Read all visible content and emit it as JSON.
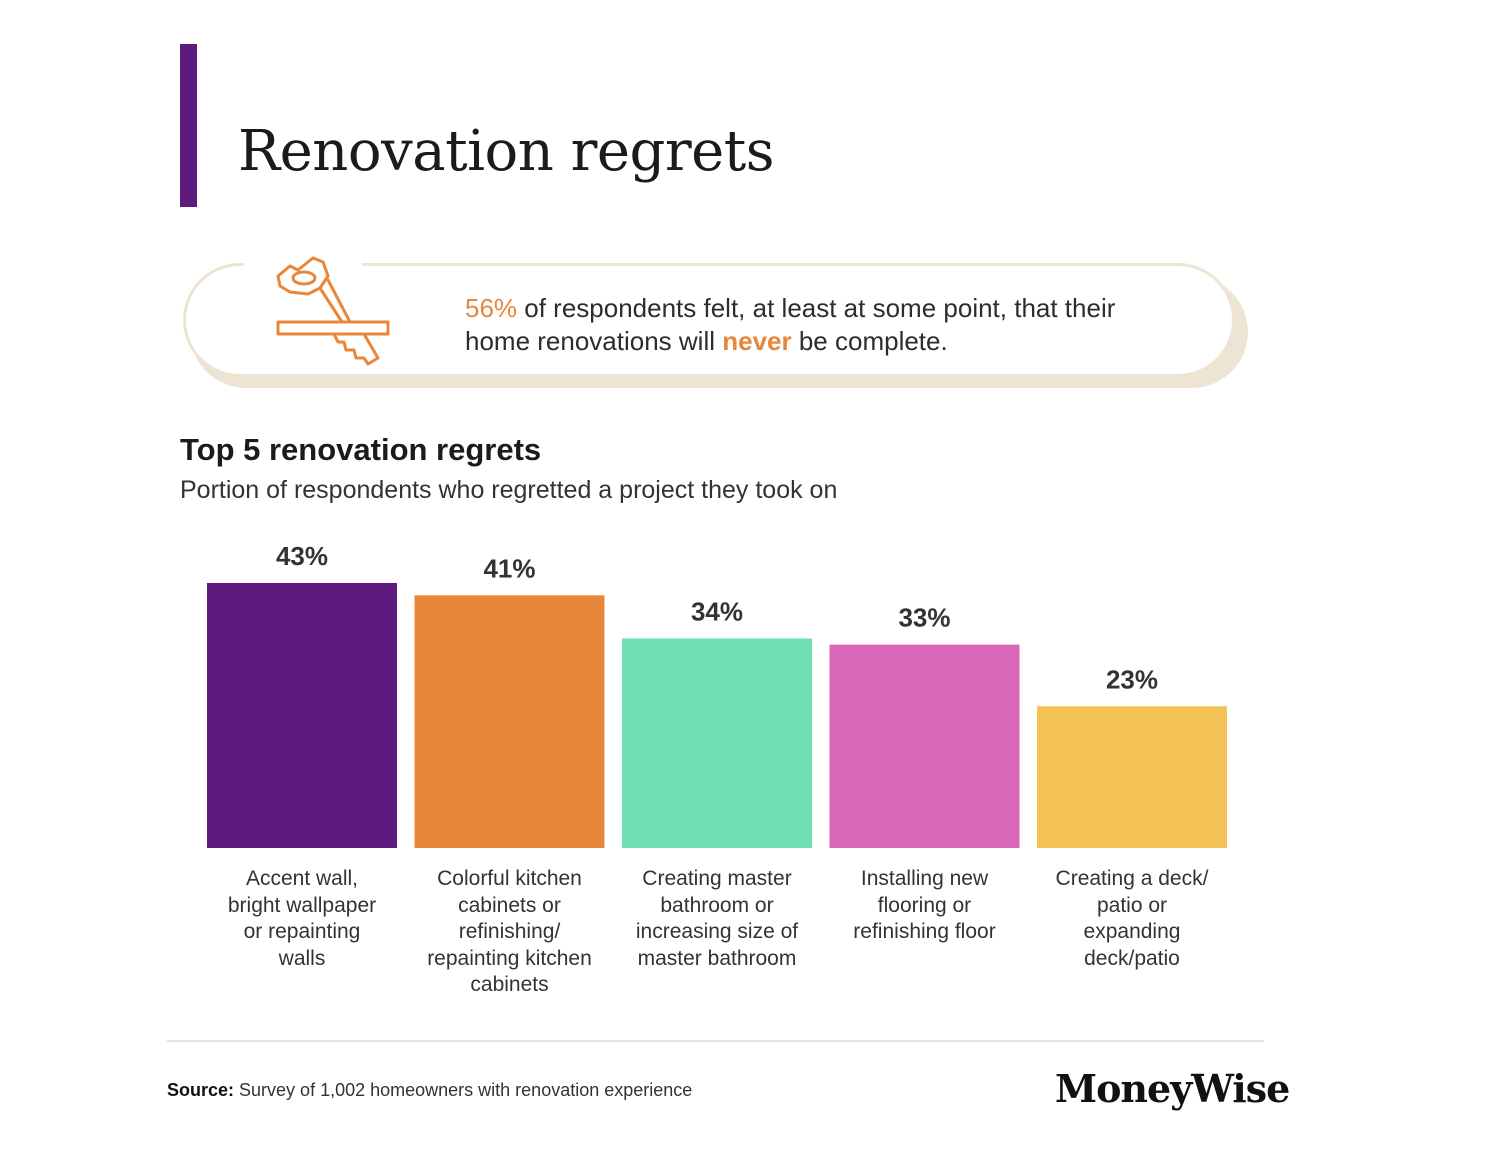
{
  "header": {
    "title": "Renovation regrets"
  },
  "callout": {
    "percent": "56%",
    "text_1": " of respondents felt, at least at some point, that their home renovations will ",
    "emphasis": "never",
    "text_2": " be complete.",
    "icon": "hand-saw-icon"
  },
  "colors": {
    "accent_purple": "#5e1a7e",
    "orange": "#e8863a",
    "teal": "#6fe0b3",
    "pink": "#d867b8",
    "yellow": "#f3c356",
    "callout_border": "#ede4d4"
  },
  "chart_data": {
    "type": "bar",
    "title": "Top 5 renovation regrets",
    "subtitle": "Portion of respondents who regretted a project they took on",
    "unit": "%",
    "categories": [
      "Accent wall, bright wallpaper or repainting walls",
      "Colorful kitchen cabinets or refinishing/ repainting kitchen cabinets",
      "Creating master bathroom or increasing size of master bathroom",
      "Installing new flooring or refinishing floor",
      "Creating a deck/ patio or expanding deck/patio"
    ],
    "category_lines": [
      [
        "Accent wall,",
        "bright wallpaper",
        "or repainting",
        "walls"
      ],
      [
        "Colorful kitchen",
        "cabinets or",
        "refinishing/",
        "repainting kitchen",
        "cabinets"
      ],
      [
        "Creating master",
        "bathroom or",
        "increasing size of",
        "master bathroom"
      ],
      [
        "Installing new",
        "flooring or",
        "refinishing floor"
      ],
      [
        "Creating a deck/",
        "patio or",
        "expanding",
        "deck/patio"
      ]
    ],
    "values": [
      43,
      41,
      34,
      33,
      23
    ],
    "value_labels": [
      "43%",
      "41%",
      "34%",
      "33%",
      "23%"
    ],
    "bar_colors": [
      "#5e1a7e",
      "#e8863a",
      "#6fe0b3",
      "#d867b8",
      "#f3c356"
    ],
    "ylim": [
      0,
      43
    ],
    "xlabel": "",
    "ylabel": "",
    "grid": false
  },
  "footer": {
    "source_label": "Source:",
    "source_text": " Survey of 1,002 homeowners with renovation experience",
    "logo": "MoneyWise"
  }
}
